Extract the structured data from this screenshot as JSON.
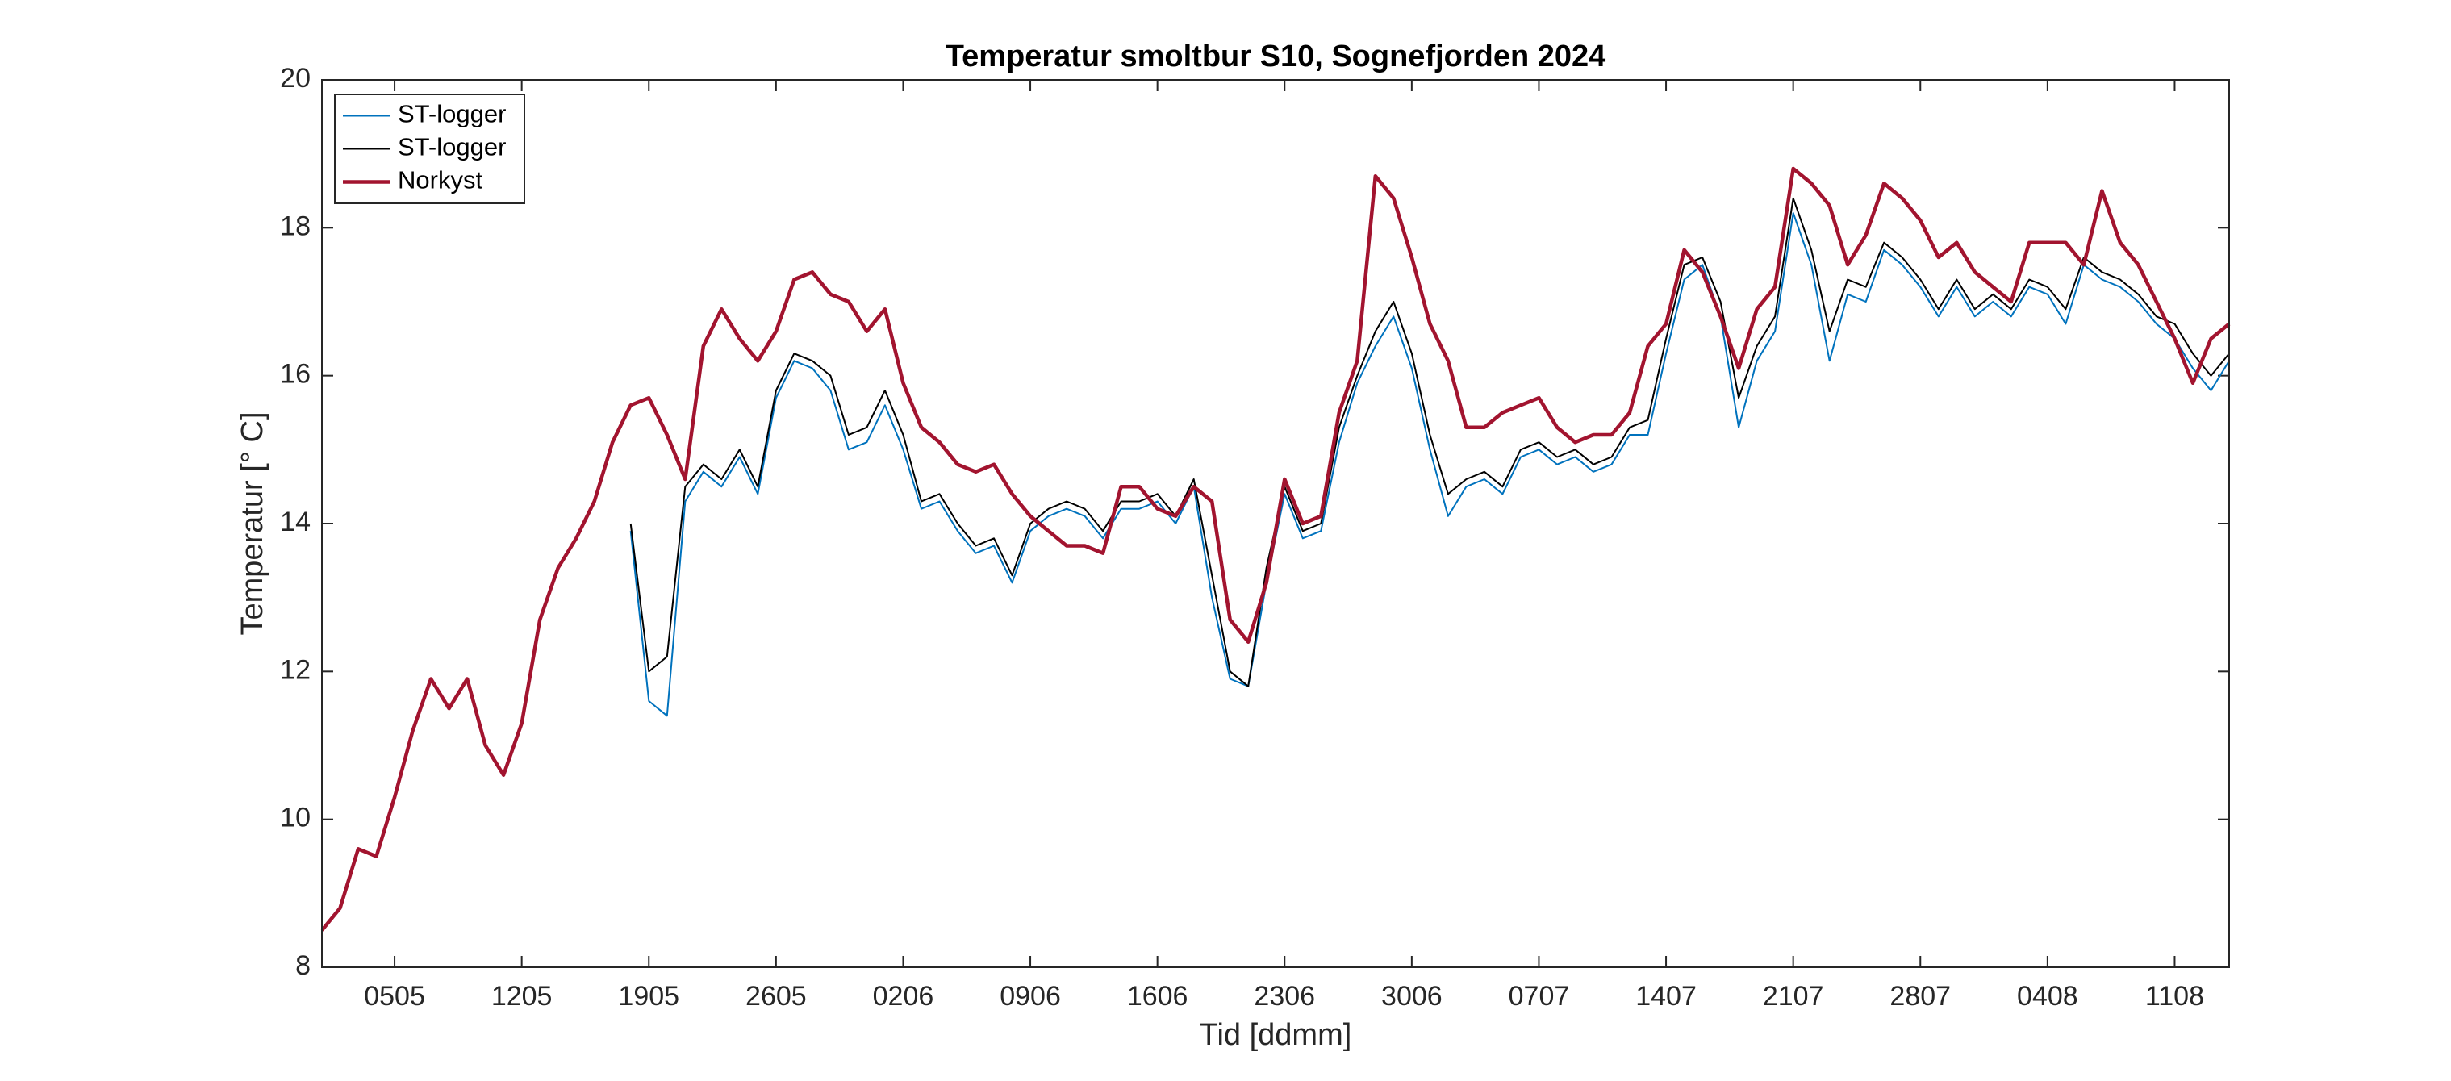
{
  "chart_data": {
    "type": "line",
    "title": "Temperatur smoltbur S10, Sognefjorden 2024",
    "xlabel": "Tid [ddmm]",
    "ylabel": "Temperatur [° C]",
    "x": [
      122,
      123,
      124,
      125,
      126,
      127,
      128,
      129,
      130,
      131,
      132,
      133,
      134,
      135,
      136,
      137,
      138,
      139,
      140,
      141,
      142,
      143,
      144,
      145,
      146,
      147,
      148,
      149,
      150,
      151,
      152,
      153,
      154,
      155,
      156,
      157,
      158,
      159,
      160,
      161,
      162,
      163,
      164,
      165,
      166,
      167,
      168,
      169,
      170,
      171,
      172,
      173,
      174,
      175,
      176,
      177,
      178,
      179,
      180,
      181,
      182,
      183,
      184,
      185,
      186,
      187,
      188,
      189,
      190,
      191,
      192,
      193,
      194,
      195,
      196,
      197,
      198,
      199,
      200,
      201,
      202,
      203,
      204,
      205,
      206,
      207,
      208,
      209,
      210,
      211,
      212,
      213,
      214,
      215,
      216,
      217,
      218,
      219,
      220,
      221,
      222,
      223,
      224,
      225,
      226,
      227
    ],
    "series": [
      {
        "name": "ST-logger",
        "color": "#0072bd",
        "values": [
          null,
          null,
          null,
          null,
          null,
          null,
          null,
          null,
          null,
          null,
          null,
          null,
          null,
          null,
          null,
          null,
          null,
          13.9,
          11.6,
          11.4,
          14.3,
          14.7,
          14.5,
          14.9,
          14.4,
          15.7,
          16.2,
          16.1,
          15.8,
          15.0,
          15.1,
          15.6,
          15.0,
          14.2,
          14.3,
          13.9,
          13.6,
          13.7,
          13.2,
          13.9,
          14.1,
          14.2,
          14.1,
          13.8,
          14.2,
          14.2,
          14.3,
          14.0,
          14.5,
          13.0,
          11.9,
          11.8,
          13.2,
          14.4,
          13.8,
          13.9,
          15.1,
          15.9,
          16.4,
          16.8,
          16.1,
          15.0,
          14.1,
          14.5,
          14.6,
          14.4,
          14.9,
          15.0,
          14.8,
          14.9,
          14.7,
          14.8,
          15.2,
          15.2,
          16.3,
          17.3,
          17.5,
          16.8,
          15.3,
          16.2,
          16.6,
          18.2,
          17.5,
          16.2,
          17.1,
          17.0,
          17.7,
          17.5,
          17.2,
          16.8,
          17.2,
          16.8,
          17.0,
          16.8,
          17.2,
          17.1,
          16.7,
          17.5,
          17.3,
          17.2,
          17.0,
          16.7,
          16.5,
          16.1,
          15.8,
          16.2
        ]
      },
      {
        "name": "ST-logger",
        "color": "#000000",
        "values": [
          null,
          null,
          null,
          null,
          null,
          null,
          null,
          null,
          null,
          null,
          null,
          null,
          null,
          null,
          null,
          null,
          null,
          14.0,
          12.0,
          12.2,
          14.5,
          14.8,
          14.6,
          15.0,
          14.5,
          15.8,
          16.3,
          16.2,
          16.0,
          15.2,
          15.3,
          15.8,
          15.2,
          14.3,
          14.4,
          14.0,
          13.7,
          13.8,
          13.3,
          14.0,
          14.2,
          14.3,
          14.2,
          13.9,
          14.3,
          14.3,
          14.4,
          14.1,
          14.6,
          13.3,
          12.0,
          11.8,
          13.4,
          14.5,
          13.9,
          14.0,
          15.3,
          16.0,
          16.6,
          17.0,
          16.3,
          15.2,
          14.4,
          14.6,
          14.7,
          14.5,
          15.0,
          15.1,
          14.9,
          15.0,
          14.8,
          14.9,
          15.3,
          15.4,
          16.5,
          17.5,
          17.6,
          17.0,
          15.7,
          16.4,
          16.8,
          18.4,
          17.7,
          16.6,
          17.3,
          17.2,
          17.8,
          17.6,
          17.3,
          16.9,
          17.3,
          16.9,
          17.1,
          16.9,
          17.3,
          17.2,
          16.9,
          17.6,
          17.4,
          17.3,
          17.1,
          16.8,
          16.7,
          16.3,
          16.0,
          16.3
        ]
      },
      {
        "name": "Norkyst",
        "color": "#a2142f",
        "values": [
          8.5,
          8.8,
          9.6,
          9.5,
          10.3,
          11.2,
          11.9,
          11.5,
          11.9,
          11.0,
          10.6,
          11.3,
          12.7,
          13.4,
          13.8,
          14.3,
          15.1,
          15.6,
          15.7,
          15.2,
          14.6,
          16.4,
          16.9,
          16.5,
          16.2,
          16.6,
          17.3,
          17.4,
          17.1,
          17.0,
          16.6,
          16.9,
          15.9,
          15.3,
          15.1,
          14.8,
          14.7,
          14.8,
          14.4,
          14.1,
          13.9,
          13.7,
          13.7,
          13.6,
          14.5,
          14.5,
          14.2,
          14.1,
          14.5,
          14.3,
          12.7,
          12.4,
          13.2,
          14.6,
          14.0,
          14.1,
          15.5,
          16.2,
          18.7,
          18.4,
          17.6,
          16.7,
          16.2,
          15.3,
          15.3,
          15.5,
          15.6,
          15.7,
          15.3,
          15.1,
          15.2,
          15.2,
          15.5,
          16.4,
          16.7,
          17.7,
          17.4,
          16.8,
          16.1,
          16.9,
          17.2,
          18.8,
          18.6,
          18.3,
          17.5,
          17.9,
          18.6,
          18.4,
          18.1,
          17.6,
          17.8,
          17.4,
          17.2,
          17.0,
          17.8,
          17.8,
          17.8,
          17.5,
          18.5,
          17.8,
          17.5,
          17.0,
          16.5,
          15.9,
          16.5,
          16.7
        ]
      }
    ],
    "xlim": [
      122,
      227
    ],
    "ylim": [
      8,
      20
    ],
    "xticks": [
      {
        "value": 126,
        "label": "0505"
      },
      {
        "value": 133,
        "label": "1205"
      },
      {
        "value": 140,
        "label": "1905"
      },
      {
        "value": 147,
        "label": "2605"
      },
      {
        "value": 154,
        "label": "0206"
      },
      {
        "value": 161,
        "label": "0906"
      },
      {
        "value": 168,
        "label": "1606"
      },
      {
        "value": 175,
        "label": "2306"
      },
      {
        "value": 182,
        "label": "3006"
      },
      {
        "value": 189,
        "label": "0707"
      },
      {
        "value": 196,
        "label": "1407"
      },
      {
        "value": 203,
        "label": "2107"
      },
      {
        "value": 210,
        "label": "2807"
      },
      {
        "value": 217,
        "label": "0408"
      },
      {
        "value": 224,
        "label": "1108"
      }
    ],
    "yticks": [
      8,
      10,
      12,
      14,
      16,
      18,
      20
    ],
    "legend": "upper left"
  }
}
